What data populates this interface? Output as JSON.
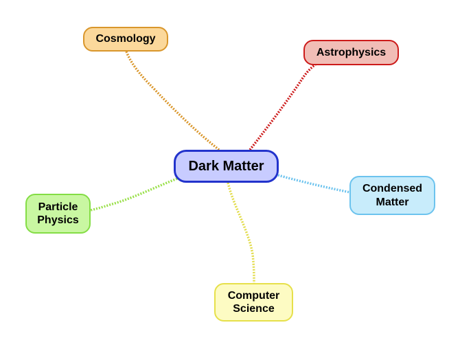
{
  "central": {
    "label": "Dark Matter",
    "fill": "#c8ccff",
    "border": "#2233cc"
  },
  "branches": {
    "cosmology": {
      "label": "Cosmology",
      "fill": "#fbd89b",
      "border": "#d9962b",
      "connector_color": "#d9962b"
    },
    "astrophysics": {
      "label": "Astrophysics",
      "fill": "#f1bdb6",
      "border": "#cc1a1a",
      "connector_color": "#cc1a1a"
    },
    "condensed_matter": {
      "line1": "Condensed",
      "line2": "Matter",
      "fill": "#c8ecfb",
      "border": "#6cc3ee",
      "connector_color": "#6cc3ee"
    },
    "particle_physics": {
      "line1": "Particle",
      "line2": "Physics",
      "fill": "#c9f7a2",
      "border": "#84dd45",
      "connector_color": "#9ae04a"
    },
    "computer_science": {
      "line1": "Computer",
      "line2": "Science",
      "fill": "#fdfbc3",
      "border": "#e6e04a",
      "connector_color": "#e2dc4a"
    }
  }
}
